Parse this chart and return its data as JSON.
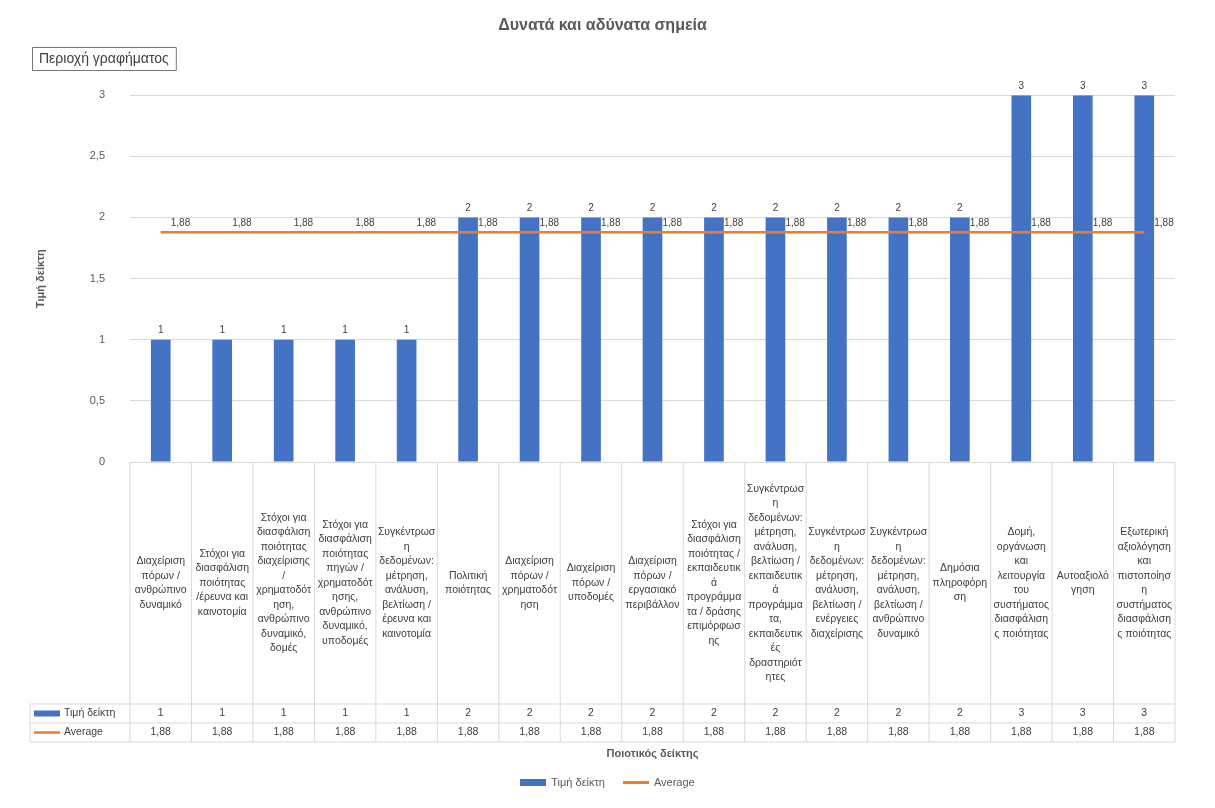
{
  "chart_data": {
    "type": "bar",
    "title": "Δυνατά και αδύνατα σημεία",
    "ylabel": "Τιμή δείκτη",
    "annotations": [
      "Περιοχή γραφήματος",
      "Ποιοτικός δείκτης"
    ],
    "categories": [
      "Διαχείριση πόρων / ανθρώπινο δυναμικό",
      "Στόχοι για διασφάλιση ποιότητας /έρευνα και καινοτομία",
      "Στόχοι για διασφάλιση ποιότητας διαχείρισης / χρηματοδότηση, ανθρώπινο δυναμικό, δομές",
      "Στόχοι για διασφάλιση ποιότητας πηγών / χρηματοδότησης, ανθρώπινο δυναμικό, υποδομές",
      "Συγκέντρωση δεδομένων: μέτρηση, ανάλυση, βελτίωση / έρευνα και καινοτομία",
      "Πολιτική ποιότητας",
      "Διαχείριση πόρων / χρηματοδότηση",
      "Διαχείριση πόρων / υποδομές",
      "Διαχείριση πόρων / εργασιακό περιβάλλον",
      "Στόχοι για διασφάλιση ποιότητας / εκπαιδευτικά προγράμματα / δράσης επιμόρφωσης",
      "Συγκέντρωση δεδομένων: μέτρηση, ανάλυση, βελτίωση / εκπαιδευτικά προγράμματα, εκπαιδευτικές δραστηριότητες",
      "Συγκέντρωση δεδομένων: μέτρηση, ανάλυση, βελτίωση / ενέργειες διαχείρισης",
      "Συγκέντρωση δεδομένων: μέτρηση, ανάλυση, βελτίωση / ανθρώπινο δυναμικό",
      "Δημόσια πληροφόρηση",
      "Δομή, οργάνωση και λειτουργία του συστήματος διασφάλισης ποιότητας",
      "Αυτοαξιολόγηση",
      "Εξωτερική αξιολόγηση και πιστοποίηση συστήματος διασφάλισης ποιότητας"
    ],
    "series": [
      {
        "name": "Τιμή δείκτη",
        "color": "#4472c4",
        "values": [
          1,
          1,
          1,
          1,
          1,
          2,
          2,
          2,
          2,
          2,
          2,
          2,
          2,
          2,
          3,
          3,
          3
        ],
        "value_labels": [
          "1",
          "1",
          "1",
          "1",
          "1",
          "2",
          "2",
          "2",
          "2",
          "2",
          "2",
          "2",
          "2",
          "2",
          "3",
          "3",
          "3"
        ]
      },
      {
        "name": "Average",
        "type": "line",
        "color": "#ed7d31",
        "values": [
          1.88,
          1.88,
          1.88,
          1.88,
          1.88,
          1.88,
          1.88,
          1.88,
          1.88,
          1.88,
          1.88,
          1.88,
          1.88,
          1.88,
          1.88,
          1.88,
          1.88
        ],
        "value_labels": [
          "1,88",
          "1,88",
          "1,88",
          "1,88",
          "1,88",
          "1,88",
          "1,88",
          "1,88",
          "1,88",
          "1,88",
          "1,88",
          "1,88",
          "1,88",
          "1,88",
          "1,88",
          "1,88",
          "1,88"
        ]
      }
    ],
    "ylim": [
      0,
      3
    ],
    "yticks": [
      0,
      {
        "value": 0.5,
        "label": "0,5"
      },
      1,
      {
        "value": 1.5,
        "label": "1,5"
      },
      2,
      {
        "value": 2.5,
        "label": "2,5"
      },
      3
    ],
    "grid": "y",
    "legend": "bottom",
    "marker": "none",
    "line_style": "solid"
  }
}
